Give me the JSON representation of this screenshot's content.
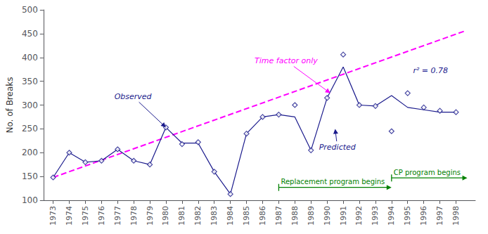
{
  "chart_data": {
    "type": "line",
    "ylabel": "No. of Breaks",
    "x": [
      1973,
      1974,
      1975,
      1976,
      1977,
      1978,
      1979,
      1980,
      1981,
      1982,
      1983,
      1984,
      1985,
      1986,
      1987,
      1988,
      1989,
      1990,
      1991,
      1992,
      1993,
      1994,
      1995,
      1996,
      1997,
      1998
    ],
    "series": [
      {
        "type": "line",
        "color": "#ff00ff",
        "line_style": "dashed",
        "x": [
          1973,
          1998.5
        ],
        "values": [
          148,
          455
        ]
      },
      {
        "type": "line",
        "color": "#1a1a8c",
        "line_style": "solid",
        "values": [
          148,
          200,
          180,
          183,
          207,
          183,
          175,
          253,
          220,
          220,
          160,
          113,
          240,
          275,
          280,
          275,
          205,
          315,
          380,
          300,
          298,
          320,
          295,
          290,
          285,
          285
        ]
      },
      {
        "type": "scatter",
        "color": "#1a1a8c",
        "marker": "diamond",
        "values": [
          148,
          200,
          180,
          183,
          207,
          183,
          175,
          253,
          218,
          222,
          160,
          113,
          240,
          275,
          280,
          300,
          205,
          315,
          406,
          300,
          298,
          245,
          325,
          295,
          288,
          285
        ]
      }
    ],
    "xlim": [
      1972.4,
      1999.2
    ],
    "xticks": [
      1973,
      1974,
      1975,
      1976,
      1977,
      1978,
      1979,
      1980,
      1981,
      1982,
      1983,
      1984,
      1985,
      1986,
      1987,
      1988,
      1989,
      1990,
      1991,
      1992,
      1993,
      1994,
      1995,
      1996,
      1997,
      1998
    ],
    "ylim": [
      100,
      500
    ],
    "yticks": [
      100,
      150,
      200,
      250,
      300,
      350,
      400,
      450,
      500
    ],
    "grid": false,
    "annotations": [
      {
        "text": "Observed",
        "x": 1976.8,
        "y": 318,
        "arrow_x": 1980.0,
        "arrow_y": 253,
        "color": "#1a1a8c"
      },
      {
        "text": "Predicted",
        "x": 1989.5,
        "y": 212,
        "arrow_x": 1990.5,
        "arrow_y": 250,
        "color": "#1a1a8c"
      },
      {
        "text": "Time factor only",
        "x": 1985.5,
        "y": 393,
        "arrow_x": 1990.2,
        "arrow_y": 325,
        "color": "#ff00ff"
      },
      {
        "text": "r² = 0.78",
        "x": 1997.5,
        "y": 372,
        "align": "right",
        "color": "#1a1a8c"
      }
    ],
    "programs": [
      {
        "label": "Replacement program begins",
        "start": 1987,
        "end": 1994,
        "y": 127,
        "color": "#008000"
      },
      {
        "label": "CP program begins",
        "start": 1994,
        "end": 1998.7,
        "y": 147,
        "color": "#008000"
      }
    ]
  }
}
